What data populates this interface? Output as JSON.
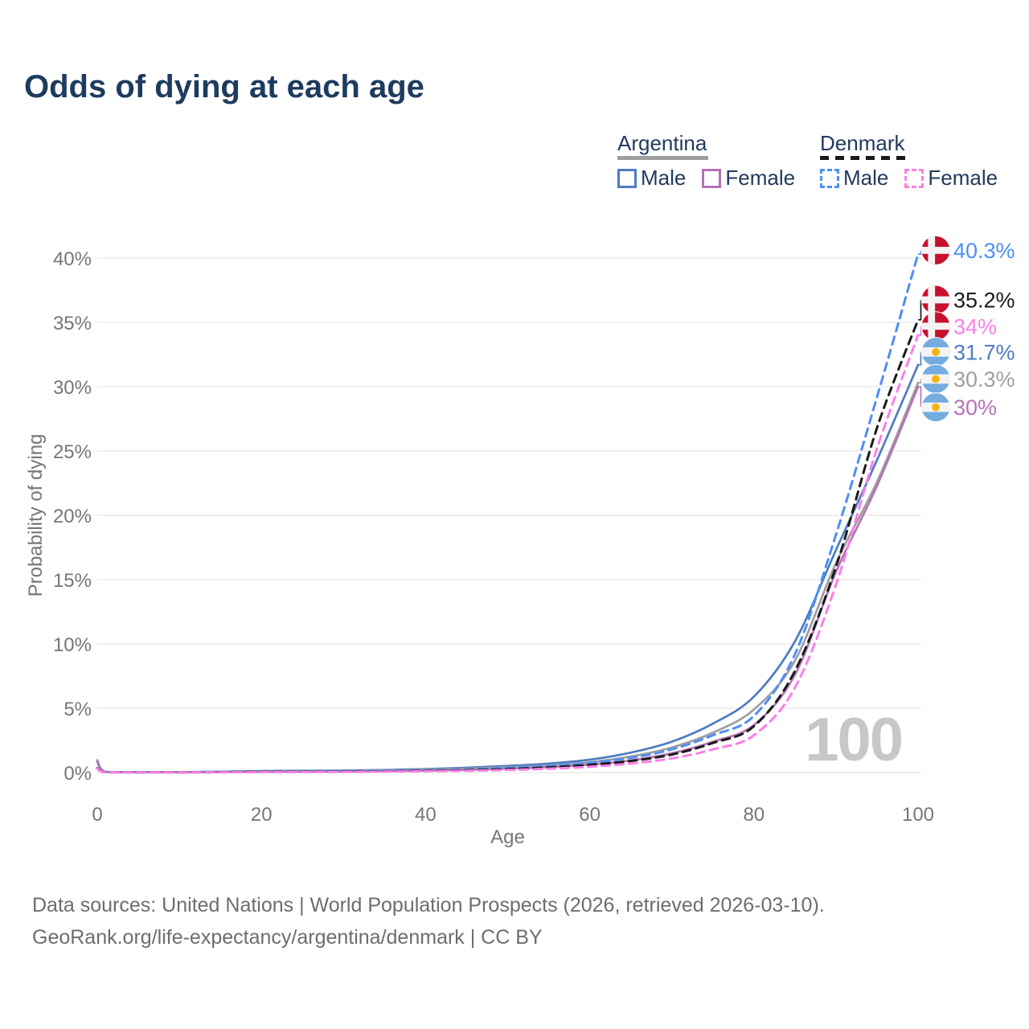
{
  "title": "Odds of dying at each age",
  "legend": {
    "argentina": {
      "label": "Argentina",
      "male_label": "Male",
      "female_label": "Female"
    },
    "denmark": {
      "label": "Denmark",
      "male_label": "Male",
      "female_label": "Female"
    }
  },
  "colors": {
    "argentina_male": "#4d7cc2",
    "argentina_female": "#b573b5",
    "argentina_both": "#9e9e9e",
    "denmark_male": "#4e8ef7",
    "denmark_female": "#fb7fe8",
    "denmark_both": "#1a1a1a",
    "title": "#1d3b5e",
    "axis_text": "#767676",
    "grid": "#ebebeb",
    "watermark": "#c7c7c7",
    "footer_text": "#6d6d6d",
    "denmark_flag_red": "#c8102e",
    "argentina_flag_blue": "#74acdf",
    "argentina_flag_sun": "#f6b40e",
    "flag_white": "#f4f4f4"
  },
  "chart_data": {
    "type": "line",
    "title": "Odds of dying at each age",
    "xlabel": "Age",
    "ylabel": "Probability of dying",
    "xlim": [
      0,
      100
    ],
    "ylim": [
      0,
      40
    ],
    "grid": true,
    "legend_position": "top-right",
    "watermark": "100",
    "x_tick_values": [
      0,
      20,
      40,
      60,
      80,
      100
    ],
    "x_tick_labels": [
      "0",
      "20",
      "40",
      "60",
      "80",
      "100"
    ],
    "y_tick_values": [
      0,
      5,
      10,
      15,
      20,
      25,
      30,
      35,
      40
    ],
    "y_tick_labels": [
      "0%",
      "5%",
      "10%",
      "15%",
      "20%",
      "25%",
      "30%",
      "35%",
      "40%"
    ],
    "ages": [
      0,
      1,
      5,
      10,
      15,
      20,
      25,
      30,
      35,
      40,
      45,
      50,
      55,
      60,
      65,
      70,
      75,
      80,
      85,
      90,
      95,
      100
    ],
    "series": [
      {
        "name": "Argentina Male",
        "country": "Argentina",
        "sex": "Male",
        "style": "solid",
        "color_key": "argentina_male",
        "values": [
          0.95,
          0.06,
          0.03,
          0.03,
          0.07,
          0.12,
          0.14,
          0.16,
          0.2,
          0.27,
          0.38,
          0.52,
          0.7,
          1.0,
          1.55,
          2.4,
          3.8,
          5.9,
          10.2,
          17.3,
          24.3,
          31.7
        ]
      },
      {
        "name": "Argentina Both sexes",
        "country": "Argentina",
        "sex": "Both",
        "style": "solid",
        "color_key": "argentina_both",
        "values": [
          0.9,
          0.05,
          0.03,
          0.03,
          0.06,
          0.09,
          0.1,
          0.12,
          0.15,
          0.21,
          0.29,
          0.4,
          0.55,
          0.8,
          1.25,
          1.95,
          3.1,
          4.9,
          8.7,
          16.3,
          22.6,
          30.3
        ]
      },
      {
        "name": "Argentina Female",
        "country": "Argentina",
        "sex": "Female",
        "style": "solid",
        "color_key": "argentina_female",
        "values": [
          0.84,
          0.05,
          0.02,
          0.02,
          0.04,
          0.06,
          0.07,
          0.08,
          0.11,
          0.15,
          0.21,
          0.3,
          0.42,
          0.62,
          0.95,
          1.5,
          2.4,
          3.7,
          7.6,
          15.6,
          22.3,
          30.0
        ]
      },
      {
        "name": "Denmark Male",
        "country": "Denmark",
        "sex": "Male",
        "style": "dashed",
        "color_key": "denmark_male",
        "values": [
          0.35,
          0.02,
          0.01,
          0.01,
          0.03,
          0.06,
          0.07,
          0.09,
          0.12,
          0.16,
          0.23,
          0.34,
          0.5,
          0.75,
          1.15,
          1.8,
          2.9,
          4.4,
          9.2,
          18.5,
          29.2,
          40.3
        ]
      },
      {
        "name": "Denmark Both sexes",
        "country": "Denmark",
        "sex": "Both",
        "style": "dashed",
        "color_key": "denmark_both",
        "values": [
          0.32,
          0.02,
          0.01,
          0.01,
          0.03,
          0.05,
          0.06,
          0.07,
          0.09,
          0.13,
          0.18,
          0.27,
          0.4,
          0.6,
          0.9,
          1.4,
          2.3,
          3.6,
          7.9,
          16.0,
          26.8,
          35.2
        ]
      },
      {
        "name": "Denmark Female",
        "country": "Denmark",
        "sex": "Female",
        "style": "dashed",
        "color_key": "denmark_female",
        "values": [
          0.3,
          0.02,
          0.01,
          0.01,
          0.02,
          0.03,
          0.04,
          0.05,
          0.07,
          0.1,
          0.14,
          0.2,
          0.3,
          0.45,
          0.7,
          1.1,
          1.8,
          2.9,
          6.6,
          14.6,
          25.2,
          34.0
        ]
      }
    ],
    "annotations": [
      {
        "text": "40.3%",
        "value": 40.3,
        "label_at": 40.6,
        "flag": "denmark",
        "color_key": "denmark_male"
      },
      {
        "text": "35.2%",
        "value": 35.2,
        "label_at": 36.75,
        "flag": "denmark",
        "color_key": "denmark_both"
      },
      {
        "text": "34%",
        "value": 34.0,
        "label_at": 34.7,
        "flag": "denmark",
        "color_key": "denmark_female"
      },
      {
        "text": "31.7%",
        "value": 31.7,
        "label_at": 32.7,
        "flag": "argentina",
        "color_key": "argentina_male"
      },
      {
        "text": "30.3%",
        "value": 30.3,
        "label_at": 30.6,
        "flag": "argentina",
        "color_key": "argentina_both"
      },
      {
        "text": "30%",
        "value": 30.0,
        "label_at": 28.4,
        "flag": "argentina",
        "color_key": "argentina_female"
      }
    ]
  },
  "footer": {
    "line1": "Data sources: United Nations | World Population Prospects (2026, retrieved 2026-03-10).",
    "line2": "GeoRank.org/life-expectancy/argentina/denmark | CC BY"
  }
}
